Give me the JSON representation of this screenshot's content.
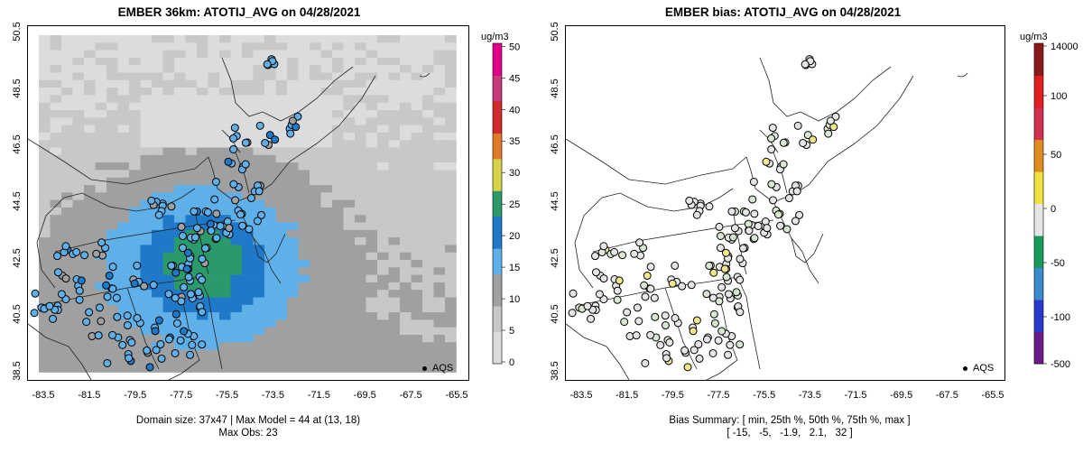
{
  "left_panel": {
    "title": "EMBER 36km: ATOTIJ_AVG on 04/28/2021",
    "units": "ug/m3",
    "colorbar_ticks": [
      "0",
      "5",
      "10",
      "15",
      "20",
      "25",
      "30",
      "35",
      "40",
      "45",
      "50"
    ],
    "legend": "AQS",
    "caption_line1": "Domain size: 37x47 | Max Model = 44 at (13, 18)",
    "caption_line2": "Max Obs: 23"
  },
  "right_panel": {
    "title": "EMBER bias: ATOTIJ_AVG on 04/28/2021",
    "units": "ug/m3",
    "colorbar_ticks": [
      "14000",
      "100",
      "50",
      "0",
      "-50",
      "-100",
      "-500"
    ],
    "legend": "AQS",
    "caption_line1": "Bias Summary: [ min, 25th %, 50th %, 75th %, max ]",
    "caption_line2": "[ -15,   -5,   -1.9,   2.1,   32 ]"
  },
  "axes": {
    "y_ticks": [
      "38.5",
      "40.5",
      "42.5",
      "44.5",
      "46.5",
      "48.5",
      "50.5"
    ],
    "x_ticks": [
      "-83.5",
      "-81.5",
      "-79.5",
      "-77.5",
      "-75.5",
      "-73.5",
      "-71.5",
      "-69.5",
      "-67.5",
      "-65.5"
    ]
  },
  "colors": {
    "conc_scale": [
      "#dcdcdc",
      "#c8c8c8",
      "#a0a0a0",
      "#5fb0e8",
      "#1f78c8",
      "#2a9a6a",
      "#d4d24a",
      "#e07a2a",
      "#d22a2a",
      "#c43a7a",
      "#e0008a"
    ],
    "bias_scale": [
      "#6a1a8a",
      "#2a3ac8",
      "#3a8acc",
      "#1a9a5a",
      "#e6e6e6",
      "#f0e040",
      "#e08a20",
      "#d23050",
      "#e02020",
      "#8a1a1a"
    ]
  }
}
